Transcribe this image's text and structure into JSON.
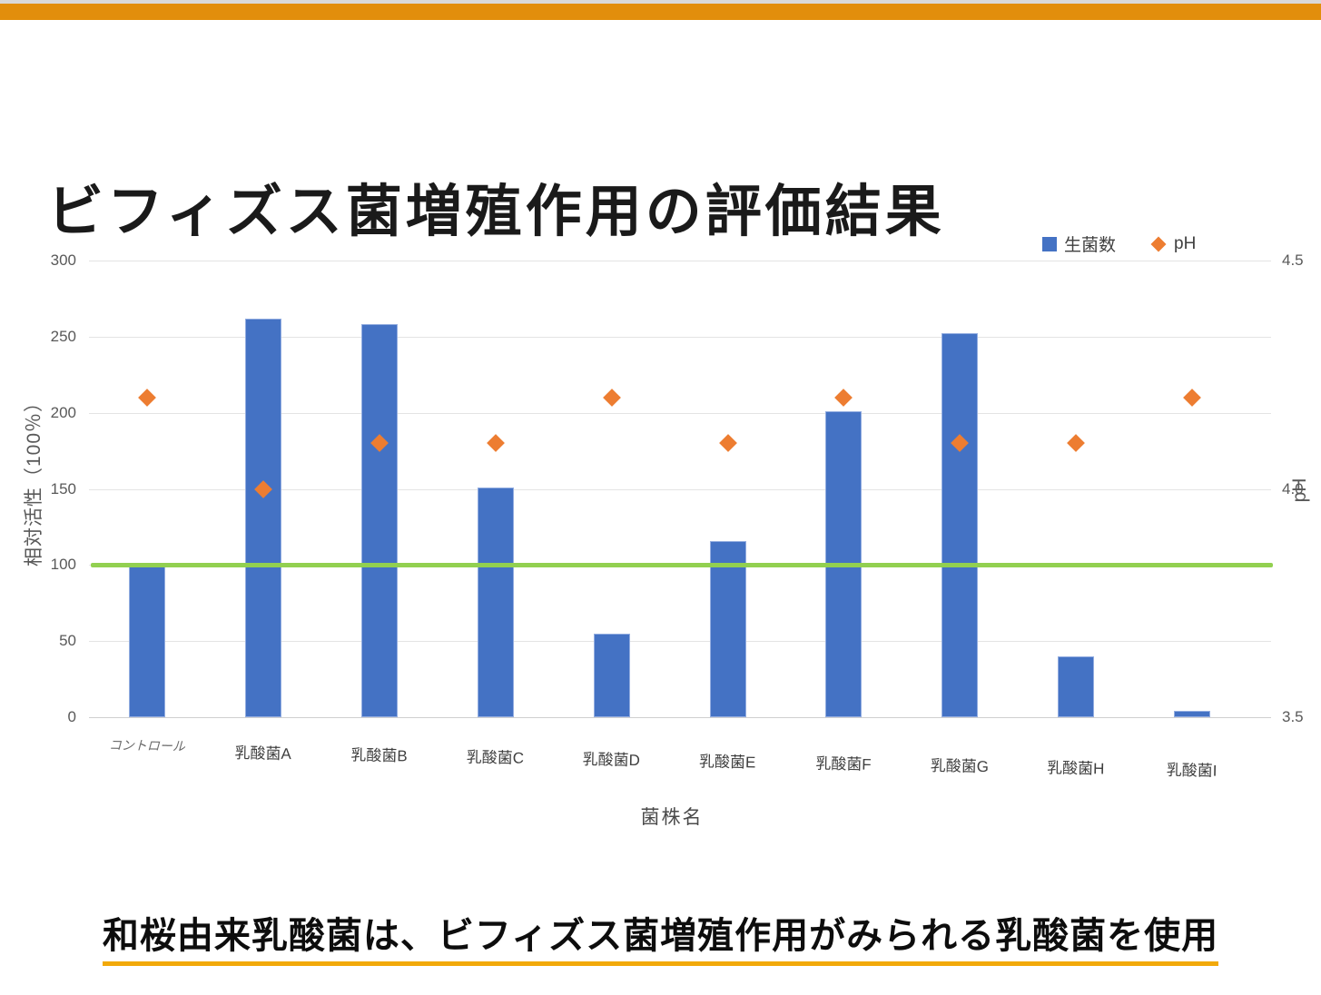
{
  "header": {
    "title": "ビフィズス菌増殖作用の評価結果"
  },
  "banner": {
    "strip_color": "#d9d9d9",
    "bar_color": "#e28e0c"
  },
  "chart_data": {
    "type": "bar",
    "subtype": "combo-bar-scatter",
    "title": "ビフィズス菌増殖作用の評価結果",
    "categories": [
      "コントロール",
      "乳酸菌A",
      "乳酸菌B",
      "乳酸菌C",
      "乳酸菌D",
      "乳酸菌E",
      "乳酸菌F",
      "乳酸菌G",
      "乳酸菌H",
      "乳酸菌I"
    ],
    "series": [
      {
        "name": "生菌数",
        "type": "bar",
        "axis": "left",
        "marker": "square",
        "color": "#4472c4",
        "values": [
          99,
          262,
          258,
          151,
          55,
          116,
          201,
          252,
          40,
          4
        ]
      },
      {
        "name": "pH",
        "type": "scatter",
        "axis": "right",
        "marker": "diamond",
        "color": "#ed7d31",
        "values": [
          4.2,
          4.0,
          4.1,
          4.1,
          4.2,
          4.1,
          4.2,
          4.1,
          4.1,
          4.2
        ]
      }
    ],
    "reference_line": {
      "axis": "left",
      "value": 100,
      "color": "#92d050"
    },
    "axes": {
      "left": {
        "title": "相対活性（100％）",
        "min": 0,
        "max": 300,
        "ticks": [
          0,
          50,
          100,
          150,
          200,
          250,
          300
        ]
      },
      "right": {
        "title": "pH",
        "min": 3.5,
        "max": 4.5,
        "ticks": [
          3.5,
          4.0,
          4.5
        ]
      },
      "x": {
        "title": "菌株名"
      }
    },
    "legend": {
      "position": "top-right"
    },
    "grid": true
  },
  "caption": {
    "text": "和桜由来乳酸菌は、ビフィズス菌増殖作用がみられる乳酸菌を使用",
    "underline_color": "#f2a90a"
  }
}
